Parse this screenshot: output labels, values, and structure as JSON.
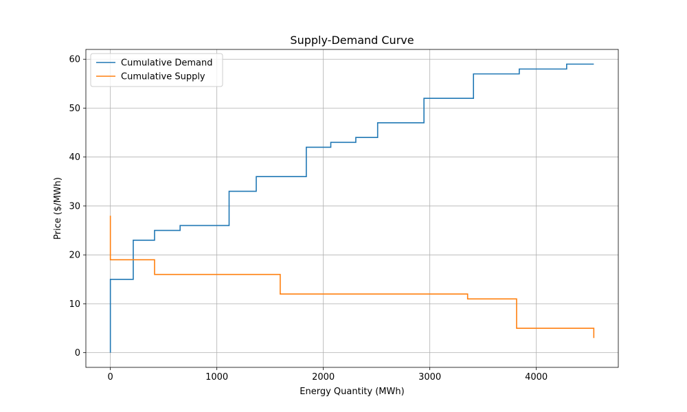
{
  "chart_data": {
    "type": "line",
    "step": "post",
    "title": "Supply-Demand Curve",
    "xlabel": "Energy Quantity (MWh)",
    "ylabel": "Price ($/MWh)",
    "xlim": [
      -230,
      4770
    ],
    "ylim": [
      -3,
      62
    ],
    "x_ticks": [
      0,
      1000,
      2000,
      3000,
      4000
    ],
    "y_ticks": [
      0,
      10,
      20,
      30,
      40,
      50,
      60
    ],
    "x_tick_labels": [
      "0",
      "1000",
      "2000",
      "3000",
      "4000"
    ],
    "y_tick_labels": [
      "0",
      "10",
      "20",
      "30",
      "40",
      "50",
      "60"
    ],
    "grid": true,
    "legend_position": "top-left",
    "series": [
      {
        "name": "Cumulative Demand",
        "color": "#1f77b4",
        "points": [
          [
            0,
            0
          ],
          [
            0,
            15
          ],
          [
            215,
            15
          ],
          [
            215,
            23
          ],
          [
            415,
            23
          ],
          [
            415,
            25
          ],
          [
            655,
            25
          ],
          [
            655,
            26
          ],
          [
            1115,
            26
          ],
          [
            1115,
            33
          ],
          [
            1370,
            33
          ],
          [
            1370,
            36
          ],
          [
            1840,
            36
          ],
          [
            1840,
            42
          ],
          [
            2070,
            42
          ],
          [
            2070,
            43
          ],
          [
            2305,
            43
          ],
          [
            2305,
            44
          ],
          [
            2510,
            44
          ],
          [
            2510,
            47
          ],
          [
            2945,
            47
          ],
          [
            2945,
            52
          ],
          [
            3410,
            52
          ],
          [
            3410,
            57
          ],
          [
            3840,
            57
          ],
          [
            3840,
            58
          ],
          [
            4285,
            58
          ],
          [
            4285,
            59
          ],
          [
            4540,
            59
          ]
        ]
      },
      {
        "name": "Cumulative Supply",
        "color": "#ff7f0e",
        "points": [
          [
            0,
            28
          ],
          [
            0,
            19
          ],
          [
            415,
            19
          ],
          [
            415,
            16
          ],
          [
            1595,
            16
          ],
          [
            1595,
            12
          ],
          [
            3355,
            12
          ],
          [
            3355,
            11
          ],
          [
            3815,
            11
          ],
          [
            3815,
            5
          ],
          [
            4540,
            5
          ],
          [
            4540,
            3
          ]
        ]
      }
    ]
  }
}
